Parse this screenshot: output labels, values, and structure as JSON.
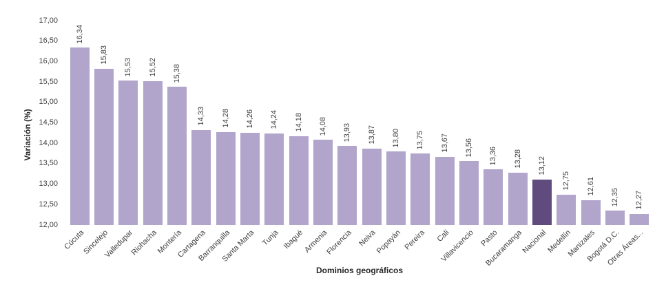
{
  "chart": {
    "y_axis_title": "Variación (%)",
    "x_axis_title": "Dominios geográficos"
  },
  "chart_data": {
    "type": "bar",
    "title": "",
    "xlabel": "Dominios geográficos",
    "ylabel": "Variación (%)",
    "ylim": [
      12.0,
      17.0
    ],
    "ytick_step": 0.5,
    "ytick_labels": [
      "17,00",
      "16,50",
      "16,00",
      "15,50",
      "15,00",
      "14,50",
      "14,00",
      "13,50",
      "13,00",
      "12,50",
      "12,00"
    ],
    "grid": false,
    "legend": "none",
    "bar_color": "#b1a5cb",
    "highlight_color": "#5f4b7d",
    "highlight_category": "Nacional",
    "categories": [
      "Cúcuta",
      "Sincelejo",
      "Valledupar",
      "Riohacha",
      "Montería",
      "Cartagena",
      "Barranquilla",
      "Santa Marta",
      "Tunja",
      "Ibagué",
      "Armenia",
      "Florencia",
      "Neiva",
      "Popayán",
      "Pereira",
      "Cali",
      "Villavicencio",
      "Pasto",
      "Bucaramanga",
      "Nacional",
      "Medellín",
      "Manizales",
      "Bogotá D.C.",
      "Otras Áreas..."
    ],
    "values": [
      16.34,
      15.83,
      15.53,
      15.52,
      15.38,
      14.33,
      14.28,
      14.26,
      14.24,
      14.18,
      14.08,
      13.93,
      13.87,
      13.8,
      13.75,
      13.67,
      13.56,
      13.36,
      13.28,
      13.12,
      12.75,
      12.61,
      12.35,
      12.27
    ],
    "value_labels": [
      "16,34",
      "15,83",
      "15,53",
      "15,52",
      "15,38",
      "14,33",
      "14,28",
      "14,26",
      "14,24",
      "14,18",
      "14,08",
      "13,93",
      "13,87",
      "13,80",
      "13,75",
      "13,67",
      "13,56",
      "13,36",
      "13,28",
      "13,12",
      "12,75",
      "12,61",
      "12,35",
      "12,27"
    ]
  }
}
